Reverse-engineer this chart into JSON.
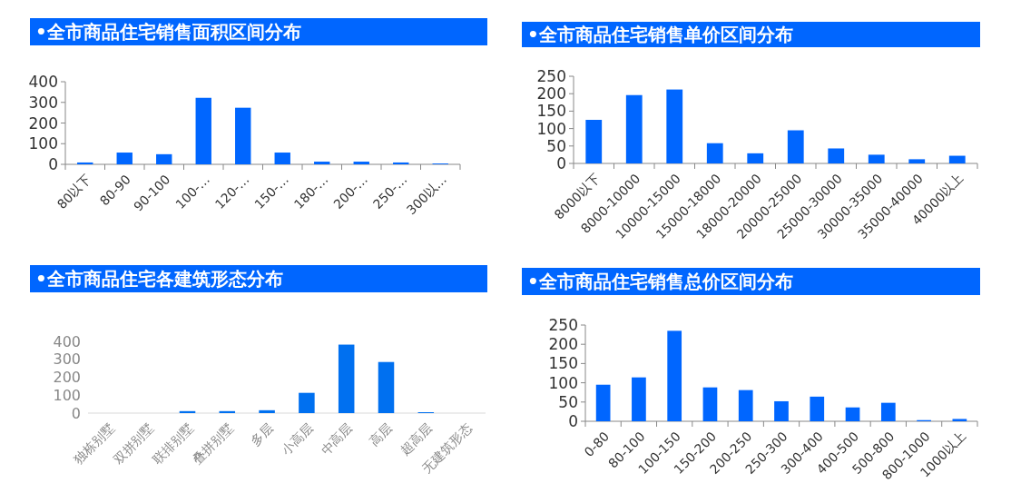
{
  "chart_data": [
    {
      "type": "bar",
      "title": "•全市商品住宅销售面积区间分布",
      "categories": [
        "80以下",
        "80-90",
        "90-100",
        "100-…",
        "120-…",
        "150-…",
        "180-…",
        "200-…",
        "250-…",
        "300以…"
      ],
      "values": [
        9,
        57,
        49,
        322,
        274,
        57,
        13,
        13,
        9,
        4
      ],
      "color": "#0066ff",
      "ylim": [
        0,
        400
      ],
      "yticks": [
        0,
        100,
        200,
        300,
        400
      ]
    },
    {
      "type": "bar",
      "title": "•全市商品住宅销售单价区间分布",
      "categories": [
        "8000以下",
        "8000-10000",
        "10000-15000",
        "15000-18000",
        "18000-20000",
        "20000-25000",
        "25000-30000",
        "30000-35000",
        "35000-40000",
        "40000以上"
      ],
      "values": [
        125,
        196,
        212,
        58,
        29,
        95,
        43,
        25,
        12,
        22
      ],
      "color": "#0066ff",
      "ylim": [
        0,
        250
      ],
      "yticks": [
        0,
        50,
        100,
        150,
        200,
        250
      ]
    },
    {
      "type": "bar",
      "title": "•全市商品住宅各建筑形态分布",
      "categories": [
        "独栋别墅",
        "双拼别墅",
        "联排别墅",
        "叠拼别墅",
        "多层",
        "小高层",
        "中高层",
        "高层",
        "超高层",
        "无建筑形态"
      ],
      "values": [
        0,
        0,
        11,
        11,
        16,
        113,
        382,
        285,
        5,
        0
      ],
      "color": "#0070f0",
      "ylim": [
        0,
        400
      ],
      "yticks": [
        0,
        100,
        200,
        300,
        400
      ]
    },
    {
      "type": "bar",
      "title": "•全市商品住宅销售总价区间分布",
      "categories": [
        "0-80",
        "80-100",
        "100-150",
        "150-200",
        "200-250",
        "250-300",
        "300-400",
        "400-500",
        "500-800",
        "800-1000",
        "1000以上"
      ],
      "values": [
        95,
        114,
        235,
        88,
        81,
        52,
        64,
        36,
        48,
        3,
        6
      ],
      "color": "#0066ff",
      "ylim": [
        0,
        250
      ],
      "yticks": [
        0,
        50,
        100,
        150,
        200,
        250
      ]
    }
  ]
}
